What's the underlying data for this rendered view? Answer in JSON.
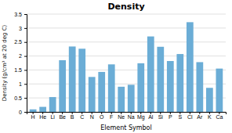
{
  "chart_data": {
    "type": "bar",
    "title": "Density",
    "xlabel": "Element Symbol",
    "ylabel": "Density (g/cm³ at 20 deg C)",
    "categories": [
      "H",
      "He",
      "Li",
      "Be",
      "B",
      "C",
      "N",
      "O",
      "F",
      "Ne",
      "Na",
      "Mg",
      "Al",
      "Si",
      "P",
      "S",
      "Cl",
      "Ar",
      "K",
      "Ca"
    ],
    "values": [
      0.09,
      0.18,
      0.53,
      1.85,
      2.34,
      2.26,
      1.25,
      1.43,
      1.7,
      0.9,
      0.97,
      1.74,
      2.7,
      2.33,
      1.82,
      2.07,
      3.21,
      1.78,
      0.86,
      1.55
    ],
    "color": "#6badd6",
    "ylim": [
      0,
      3.5
    ],
    "yticks": [
      0,
      0.5,
      1,
      1.5,
      2,
      2.5,
      3,
      3.5
    ],
    "grid": true
  }
}
